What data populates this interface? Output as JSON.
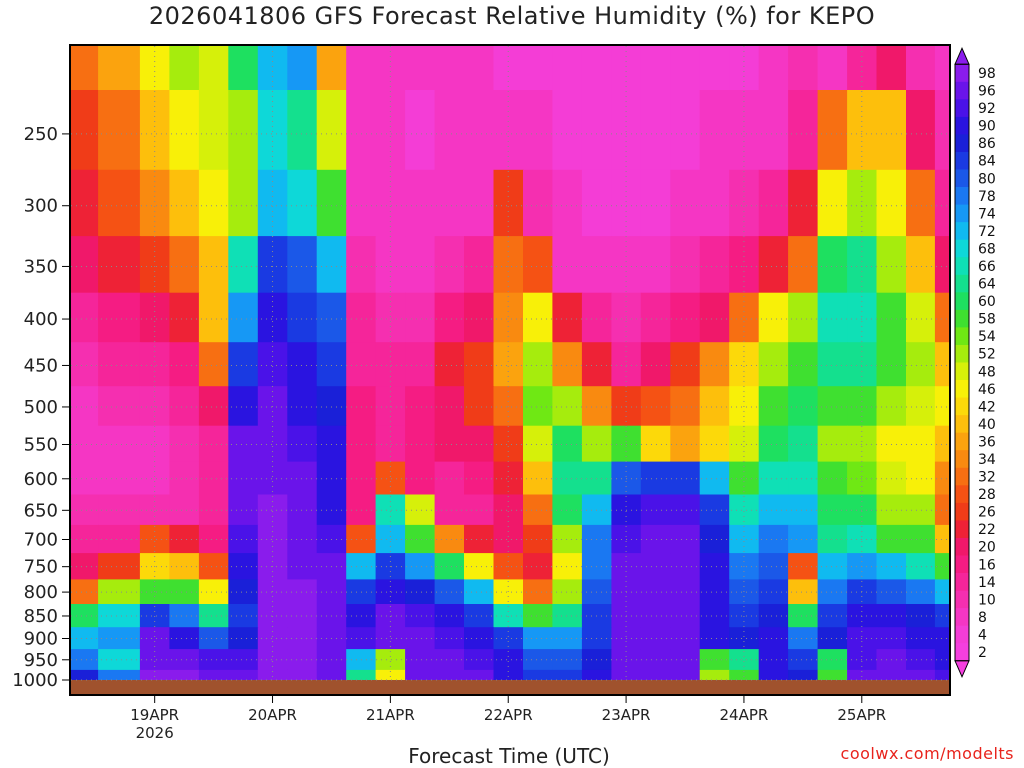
{
  "title": "2026041806 GFS Forecast Relative Humidity (%) for KEPO",
  "xlabel": "Forecast Time (UTC)",
  "credit": "coolwx.com/modelts",
  "chart_data": {
    "type": "heatmap",
    "title": "2026041806 GFS Forecast Relative Humidity (%) for KEPO",
    "xlabel": "Forecast Time (UTC)",
    "ylabel": "",
    "x_ticks": [
      "19APR",
      "20APR",
      "21APR",
      "22APR",
      "23APR",
      "24APR",
      "25APR"
    ],
    "x_year": "2026",
    "x_range_days": [
      18.29,
      25.74
    ],
    "y_ticks": [
      250,
      300,
      350,
      400,
      450,
      500,
      550,
      600,
      650,
      700,
      750,
      800,
      850,
      900,
      950,
      1000
    ],
    "y_range_hpa": [
      200,
      1000
    ],
    "y_scale": "log-pressure",
    "grid": true,
    "colorbar_levels": [
      2,
      4,
      8,
      10,
      14,
      16,
      20,
      22,
      26,
      28,
      32,
      34,
      36,
      40,
      42,
      46,
      48,
      52,
      54,
      58,
      60,
      64,
      66,
      68,
      72,
      74,
      78,
      80,
      84,
      86,
      90,
      92,
      96,
      98
    ],
    "colorbar_colors": [
      "#f53fdf",
      "#f43dd6",
      "#f536c4",
      "#f52fb0",
      "#f5259a",
      "#f51c83",
      "#f0186a",
      "#ee2236",
      "#f03c18",
      "#f55214",
      "#f76f12",
      "#f98a10",
      "#fba30e",
      "#fdbf0c",
      "#fcd90a",
      "#f8f008",
      "#d6f00a",
      "#a6ec0d",
      "#6fe814",
      "#3fe030",
      "#1ee060",
      "#14e08e",
      "#0fe0b6",
      "#0ed8d8",
      "#10baf0",
      "#1698f5",
      "#1a78f2",
      "#1b58e8",
      "#1a3ae2",
      "#1a20d8",
      "#2a14e0",
      "#4a12e8",
      "#6a14ea",
      "#8a1cec"
    ],
    "colorbar_extend": "both",
    "grid_days": [
      18.29,
      18.75,
      19.0,
      19.25,
      19.5,
      19.75,
      20.0,
      20.25,
      20.5,
      20.75,
      21.0,
      21.25,
      21.5,
      21.75,
      22.0,
      22.25,
      22.5,
      22.75,
      23.0,
      23.25,
      23.5,
      23.75,
      24.0,
      24.25,
      24.5,
      24.75,
      25.0,
      25.25,
      25.5,
      25.74
    ],
    "grid_levels_hpa": [
      200,
      250,
      300,
      350,
      400,
      450,
      500,
      550,
      600,
      650,
      700,
      750,
      800,
      850,
      900,
      950,
      1000
    ],
    "rh_percent": [
      [
        30,
        36,
        46,
        50,
        48,
        60,
        70,
        74,
        36,
        6,
        6,
        6,
        6,
        6,
        4,
        4,
        4,
        4,
        4,
        4,
        4,
        4,
        4,
        6,
        10,
        8,
        14,
        20,
        10,
        8
      ],
      [
        26,
        32,
        40,
        46,
        48,
        52,
        68,
        64,
        48,
        6,
        6,
        4,
        6,
        6,
        6,
        6,
        4,
        4,
        4,
        4,
        4,
        6,
        6,
        8,
        14,
        30,
        40,
        40,
        20,
        10
      ],
      [
        22,
        28,
        34,
        40,
        44,
        50,
        72,
        68,
        58,
        8,
        6,
        6,
        8,
        8,
        26,
        10,
        6,
        4,
        4,
        4,
        6,
        8,
        10,
        14,
        22,
        44,
        50,
        44,
        30,
        14
      ],
      [
        20,
        22,
        26,
        30,
        40,
        66,
        82,
        80,
        70,
        10,
        8,
        8,
        10,
        12,
        30,
        28,
        8,
        6,
        6,
        8,
        10,
        14,
        16,
        22,
        32,
        60,
        62,
        50,
        40,
        20
      ],
      [
        14,
        16,
        20,
        22,
        38,
        74,
        88,
        84,
        80,
        12,
        10,
        10,
        16,
        20,
        34,
        44,
        22,
        12,
        10,
        12,
        16,
        20,
        30,
        44,
        52,
        66,
        66,
        56,
        48,
        30
      ],
      [
        10,
        12,
        14,
        16,
        30,
        82,
        92,
        88,
        84,
        14,
        12,
        14,
        22,
        26,
        36,
        52,
        34,
        22,
        14,
        18,
        26,
        34,
        42,
        52,
        58,
        62,
        64,
        56,
        50,
        40
      ],
      [
        8,
        10,
        10,
        12,
        20,
        90,
        94,
        90,
        86,
        16,
        12,
        16,
        20,
        24,
        30,
        54,
        50,
        34,
        26,
        28,
        30,
        38,
        46,
        56,
        60,
        56,
        58,
        52,
        48,
        46
      ],
      [
        8,
        8,
        8,
        10,
        14,
        94,
        96,
        92,
        88,
        16,
        14,
        16,
        18,
        20,
        26,
        48,
        60,
        52,
        56,
        42,
        36,
        42,
        48,
        60,
        62,
        52,
        52,
        46,
        44,
        40
      ],
      [
        8,
        8,
        8,
        10,
        12,
        94,
        96,
        94,
        90,
        16,
        28,
        16,
        14,
        16,
        22,
        40,
        62,
        64,
        80,
        84,
        84,
        70,
        58,
        66,
        66,
        56,
        54,
        48,
        46,
        34
      ],
      [
        10,
        10,
        10,
        10,
        12,
        94,
        98,
        94,
        90,
        16,
        66,
        48,
        12,
        14,
        18,
        32,
        60,
        72,
        88,
        92,
        92,
        82,
        66,
        72,
        70,
        60,
        60,
        52,
        50,
        30
      ],
      [
        12,
        14,
        28,
        22,
        16,
        92,
        98,
        96,
        92,
        28,
        70,
        56,
        34,
        22,
        18,
        24,
        50,
        76,
        92,
        94,
        94,
        86,
        72,
        76,
        74,
        64,
        66,
        58,
        56,
        40
      ],
      [
        20,
        24,
        42,
        40,
        28,
        90,
        98,
        96,
        94,
        70,
        84,
        74,
        60,
        44,
        28,
        22,
        46,
        78,
        94,
        96,
        96,
        88,
        78,
        80,
        28,
        70,
        74,
        70,
        66,
        56
      ],
      [
        32,
        50,
        58,
        56,
        46,
        86,
        98,
        98,
        96,
        82,
        90,
        86,
        80,
        70,
        46,
        30,
        52,
        80,
        96,
        96,
        96,
        88,
        80,
        84,
        40,
        76,
        82,
        80,
        78,
        72
      ],
      [
        60,
        68,
        84,
        76,
        64,
        84,
        98,
        98,
        96,
        90,
        94,
        92,
        88,
        84,
        66,
        56,
        64,
        82,
        96,
        96,
        96,
        90,
        84,
        86,
        60,
        82,
        88,
        88,
        86,
        82
      ],
      [
        72,
        74,
        94,
        90,
        80,
        86,
        98,
        98,
        96,
        92,
        96,
        94,
        92,
        90,
        82,
        74,
        74,
        84,
        96,
        96,
        96,
        90,
        86,
        88,
        76,
        86,
        92,
        92,
        90,
        88
      ],
      [
        78,
        68,
        96,
        96,
        92,
        92,
        98,
        98,
        96,
        70,
        50,
        94,
        94,
        92,
        88,
        80,
        80,
        86,
        96,
        96,
        94,
        58,
        62,
        88,
        84,
        60,
        92,
        94,
        92,
        90
      ],
      [
        86,
        76,
        98,
        98,
        96,
        96,
        98,
        98,
        96,
        64,
        46,
        96,
        96,
        94,
        90,
        84,
        84,
        88,
        96,
        96,
        94,
        52,
        58,
        90,
        86,
        56,
        94,
        96,
        94,
        92
      ]
    ]
  }
}
